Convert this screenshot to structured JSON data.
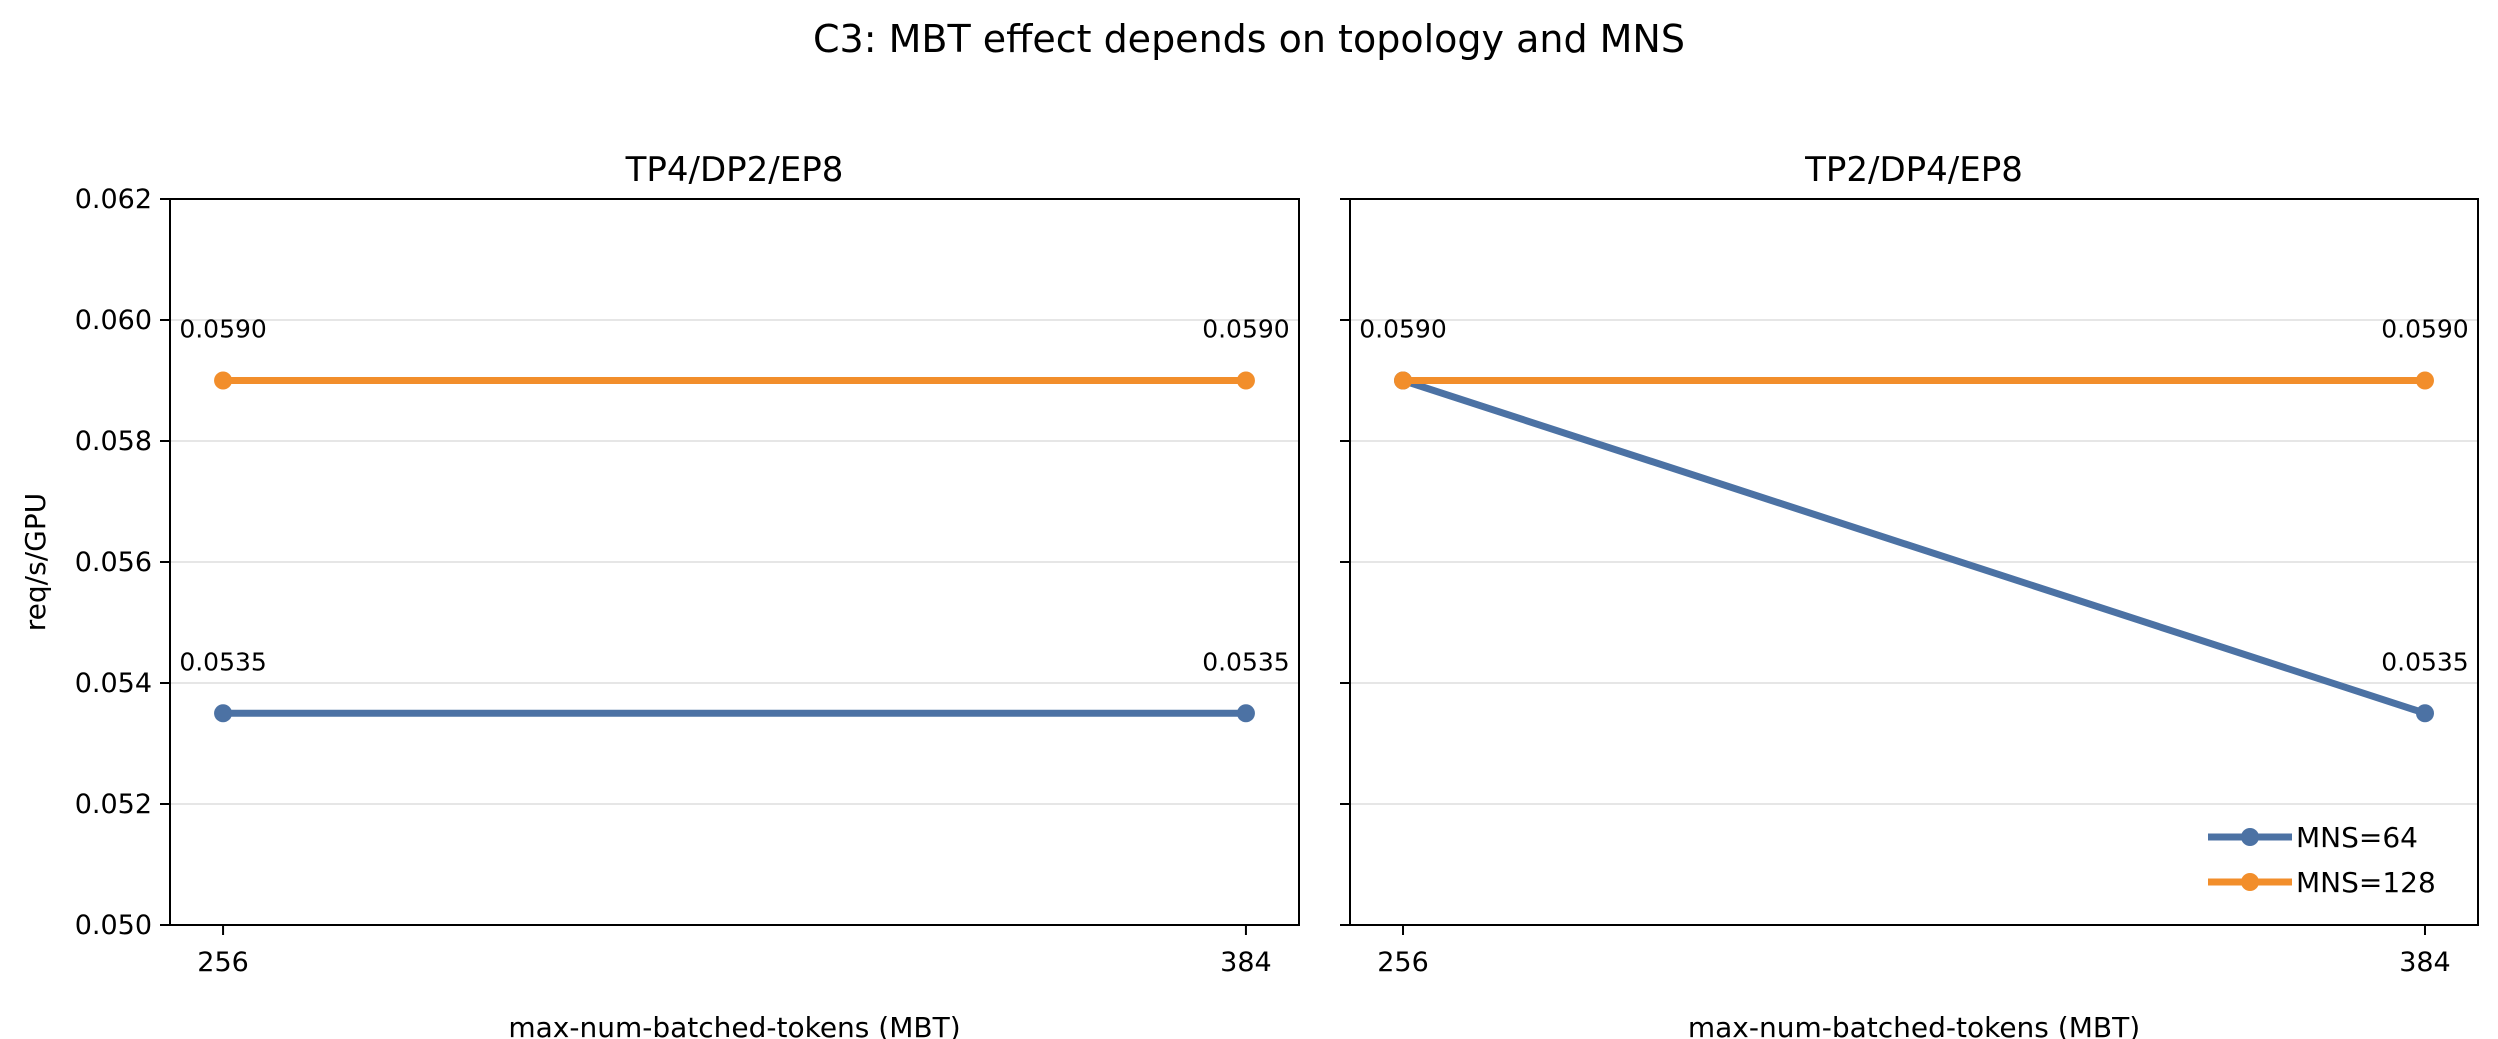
{
  "figure": {
    "title": "C3: MBT effect depends on topology and MNS"
  },
  "colors": {
    "MNS=64": "#4c72a4",
    "MNS=128": "#f28e2b",
    "grid": "#e6e6e6",
    "axes": "#000000"
  },
  "chart_data": [
    {
      "type": "line",
      "title": "TP4/DP2/EP8",
      "xlabel": "max-num-batched-tokens (MBT)",
      "ylabel": "req/s/GPU",
      "categories": [
        "256",
        "384"
      ],
      "ylim": [
        0.05,
        0.062
      ],
      "yticks": [
        "0.050",
        "0.052",
        "0.054",
        "0.056",
        "0.058",
        "0.060",
        "0.062"
      ],
      "grid": "horizontal",
      "series": [
        {
          "name": "MNS=64",
          "values": [
            0.0535,
            0.0535
          ],
          "labels": [
            "0.0535",
            "0.0535"
          ]
        },
        {
          "name": "MNS=128",
          "values": [
            0.059,
            0.059
          ],
          "labels": [
            "0.0590",
            "0.0590"
          ]
        }
      ]
    },
    {
      "type": "line",
      "title": "TP2/DP4/EP8",
      "xlabel": "max-num-batched-tokens (MBT)",
      "ylabel": "",
      "categories": [
        "256",
        "384"
      ],
      "ylim": [
        0.05,
        0.062
      ],
      "yticks": [],
      "grid": "horizontal",
      "legend": "lower-right",
      "series": [
        {
          "name": "MNS=64",
          "values": [
            0.059,
            0.0535
          ],
          "labels": [
            "",
            "0.0535"
          ]
        },
        {
          "name": "MNS=128",
          "values": [
            0.059,
            0.059
          ],
          "labels": [
            "0.0590",
            "0.0590"
          ]
        }
      ]
    }
  ]
}
